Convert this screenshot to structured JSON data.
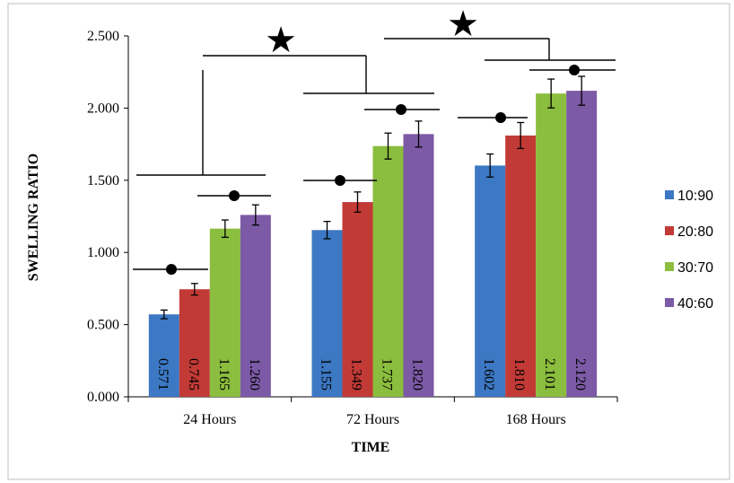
{
  "chart_data": {
    "type": "bar",
    "categories": [
      "24 Hours",
      "72 Hours",
      "168 Hours"
    ],
    "series": [
      {
        "name": "10:90",
        "color": "#3c78c3",
        "values": [
          0.571,
          1.155,
          1.602
        ],
        "labels": [
          "0.571",
          "1.155",
          "1.602"
        ],
        "errors": [
          0.03,
          0.06,
          0.08
        ]
      },
      {
        "name": "20:80",
        "color": "#c23a36",
        "values": [
          0.745,
          1.349,
          1.81
        ],
        "labels": [
          "0.745",
          "1.349",
          "1.810"
        ],
        "errors": [
          0.04,
          0.07,
          0.09
        ]
      },
      {
        "name": "30:70",
        "color": "#8bbd3e",
        "values": [
          1.165,
          1.737,
          2.101
        ],
        "labels": [
          "1.165",
          "1.737",
          "2.101"
        ],
        "errors": [
          0.06,
          0.09,
          0.1
        ]
      },
      {
        "name": "40:60",
        "color": "#7c5aa6",
        "values": [
          1.26,
          1.82,
          2.12
        ],
        "labels": [
          "1.260",
          "1.820",
          "2.120"
        ],
        "errors": [
          0.07,
          0.09,
          0.1
        ]
      }
    ],
    "xlabel": "TIME",
    "ylabel": "SWELLING RATIO",
    "ylim": [
      0,
      2.5
    ],
    "yticks": [
      "0.000",
      "0.500",
      "1.000",
      "1.500",
      "2.000",
      "2.500"
    ],
    "grid": false,
    "legend_position": "right",
    "significance": {
      "between_groups_symbol": "★",
      "within_group_symbol": "●"
    }
  }
}
